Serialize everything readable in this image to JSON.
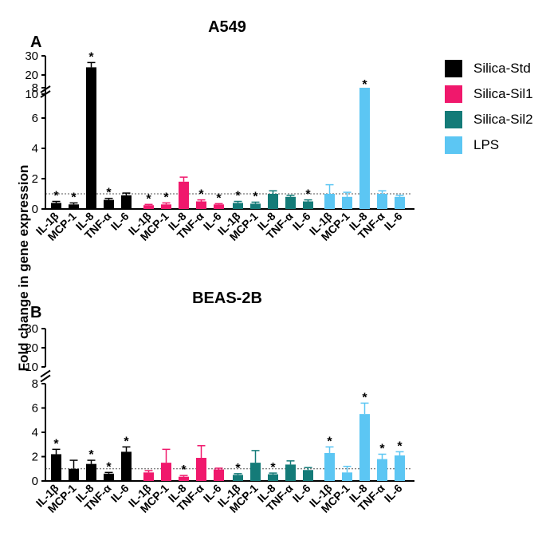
{
  "ylabel": "Fold change in gene expression",
  "legend": [
    {
      "name": "Silica-Std",
      "color": "#000000"
    },
    {
      "name": "Silica-Sil1",
      "color": "#f0186c"
    },
    {
      "name": "Silica-Sil2",
      "color": "#147b78"
    },
    {
      "name": "LPS",
      "color": "#5cc6f3"
    }
  ],
  "chart_data": [
    {
      "type": "bar",
      "panel": "A",
      "title": "A549",
      "ylabel": "Fold change in gene expression",
      "categories": [
        "IL-1β",
        "MCP-1",
        "IL-8",
        "TNF-α",
        "IL-6"
      ],
      "reference_line": 1,
      "ylim_lower": [
        0,
        8
      ],
      "ylim_upper": [
        10,
        30
      ],
      "yticks": [
        "0",
        "2",
        "4",
        "6",
        "8",
        "10",
        "20",
        "30"
      ],
      "series": [
        {
          "name": "Silica-Std",
          "color": "#000000",
          "values": [
            0.4,
            0.3,
            24,
            0.6,
            0.9
          ],
          "errors": [
            0.1,
            0.1,
            2.5,
            0.1,
            0.15
          ],
          "significant": [
            true,
            true,
            true,
            true,
            false
          ]
        },
        {
          "name": "Silica-Sil1",
          "color": "#f0186c",
          "values": [
            0.25,
            0.3,
            1.8,
            0.5,
            0.3
          ],
          "errors": [
            0.05,
            0.1,
            0.3,
            0.1,
            0.05
          ],
          "significant": [
            true,
            true,
            false,
            true,
            true
          ]
        },
        {
          "name": "Silica-Sil2",
          "color": "#147b78",
          "values": [
            0.4,
            0.35,
            1.0,
            0.8,
            0.5
          ],
          "errors": [
            0.1,
            0.1,
            0.2,
            0.1,
            0.1
          ],
          "significant": [
            true,
            true,
            false,
            false,
            true
          ]
        },
        {
          "name": "LPS",
          "color": "#5cc6f3",
          "values": [
            1.0,
            0.8,
            10.5,
            1.0,
            0.8
          ],
          "errors": [
            0.6,
            0.3,
            1.5,
            0.2,
            0.1
          ],
          "significant": [
            false,
            false,
            true,
            false,
            false
          ]
        }
      ]
    },
    {
      "type": "bar",
      "panel": "B",
      "title": "BEAS-2B",
      "ylabel": "Fold change in gene expression",
      "categories": [
        "IL-1β",
        "MCP-1",
        "IL-8",
        "TNF-α",
        "IL-6"
      ],
      "reference_line": 1,
      "ylim_lower": [
        0,
        8
      ],
      "ylim_upper": [
        10,
        30
      ],
      "yticks": [
        "0",
        "2",
        "4",
        "6",
        "8",
        "10",
        "20",
        "30"
      ],
      "series": [
        {
          "name": "Silica-Std",
          "color": "#000000",
          "values": [
            2.2,
            1.0,
            1.4,
            0.6,
            2.4
          ],
          "errors": [
            0.4,
            0.7,
            0.3,
            0.1,
            0.4
          ],
          "significant": [
            true,
            false,
            true,
            true,
            true
          ]
        },
        {
          "name": "Silica-Sil1",
          "color": "#f0186c",
          "values": [
            0.7,
            1.5,
            0.35,
            1.9,
            0.95
          ],
          "errors": [
            0.15,
            1.1,
            0.1,
            1.0,
            0.1
          ],
          "significant": [
            false,
            false,
            true,
            false,
            false
          ]
        },
        {
          "name": "Silica-Sil2",
          "color": "#147b78",
          "values": [
            0.5,
            1.5,
            0.55,
            1.35,
            0.9
          ],
          "errors": [
            0.1,
            1.0,
            0.1,
            0.3,
            0.2
          ],
          "significant": [
            true,
            false,
            true,
            false,
            false
          ]
        },
        {
          "name": "LPS",
          "color": "#5cc6f3",
          "values": [
            2.3,
            0.7,
            5.5,
            1.8,
            2.1
          ],
          "errors": [
            0.5,
            0.5,
            0.9,
            0.4,
            0.3
          ],
          "significant": [
            true,
            false,
            true,
            true,
            true
          ]
        }
      ]
    }
  ]
}
